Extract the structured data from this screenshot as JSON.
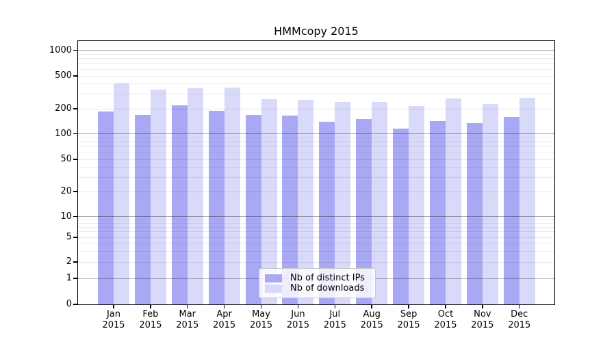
{
  "chart_data": {
    "type": "bar",
    "title": "HMMcopy 2015",
    "categories": [
      "Jan",
      "Feb",
      "Mar",
      "Apr",
      "May",
      "Jun",
      "Jul",
      "Aug",
      "Sep",
      "Oct",
      "Nov",
      "Dec"
    ],
    "category_year": "2015",
    "series": [
      {
        "name": "Nb of distinct IPs",
        "color": "#a8a8f4",
        "values": [
          185,
          170,
          220,
          190,
          167,
          164,
          139,
          151,
          116,
          143,
          135,
          158
        ]
      },
      {
        "name": "Nb of downloads",
        "color": "#d9d9f9",
        "values": [
          404,
          340,
          357,
          359,
          260,
          255,
          242,
          244,
          216,
          267,
          230,
          274
        ]
      }
    ],
    "y_axis": {
      "scale": "symlog",
      "ticks": [
        0,
        1,
        2,
        5,
        10,
        20,
        50,
        100,
        200,
        500,
        1000
      ],
      "range": [
        0,
        1000
      ]
    },
    "x_axis": {
      "tick_labels": [
        "Jan 2015",
        "Feb 2015",
        "Mar 2015",
        "Apr 2015",
        "May 2015",
        "Jun 2015",
        "Jul 2015",
        "Aug 2015",
        "Sep 2015",
        "Oct 2015",
        "Nov 2015",
        "Dec 2015"
      ]
    },
    "legend": {
      "position": "lower center",
      "entries": [
        "Nb of distinct IPs",
        "Nb of downloads"
      ]
    },
    "grid": "horizontal log major and minor gridlines"
  },
  "colors": {
    "background": "#ffffff",
    "frame": "#000000",
    "grid_minor": "#ececec",
    "grid_power10": "#b3b3b3",
    "bar_distinct_ips": "#a8a8f4",
    "bar_downloads": "#d9d9f9"
  }
}
